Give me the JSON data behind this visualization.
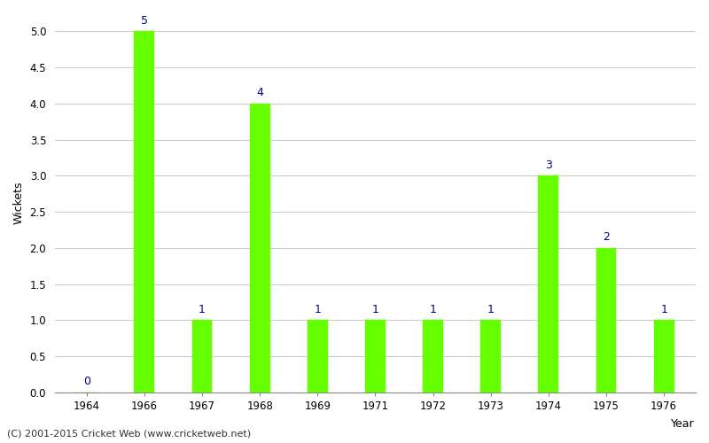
{
  "years": [
    "1964",
    "1966",
    "1967",
    "1968",
    "1969",
    "1971",
    "1972",
    "1973",
    "1974",
    "1975",
    "1976"
  ],
  "wickets": [
    0,
    5,
    1,
    4,
    1,
    1,
    1,
    1,
    3,
    2,
    1
  ],
  "bar_color": "#66ff00",
  "bar_edge_color": "#66ff00",
  "label_color": "#00008B",
  "xlabel": "Year",
  "ylabel": "Wickets",
  "ylim": [
    0,
    5.25
  ],
  "yticks": [
    0.0,
    0.5,
    1.0,
    1.5,
    2.0,
    2.5,
    3.0,
    3.5,
    4.0,
    4.5,
    5.0
  ],
  "grid_color": "#cccccc",
  "background_color": "#ffffff",
  "footnote": "(C) 2001-2015 Cricket Web (www.cricketweb.net)",
  "label_fontsize": 9,
  "axis_label_fontsize": 9,
  "tick_fontsize": 8.5,
  "footnote_fontsize": 8,
  "bar_width": 0.35
}
